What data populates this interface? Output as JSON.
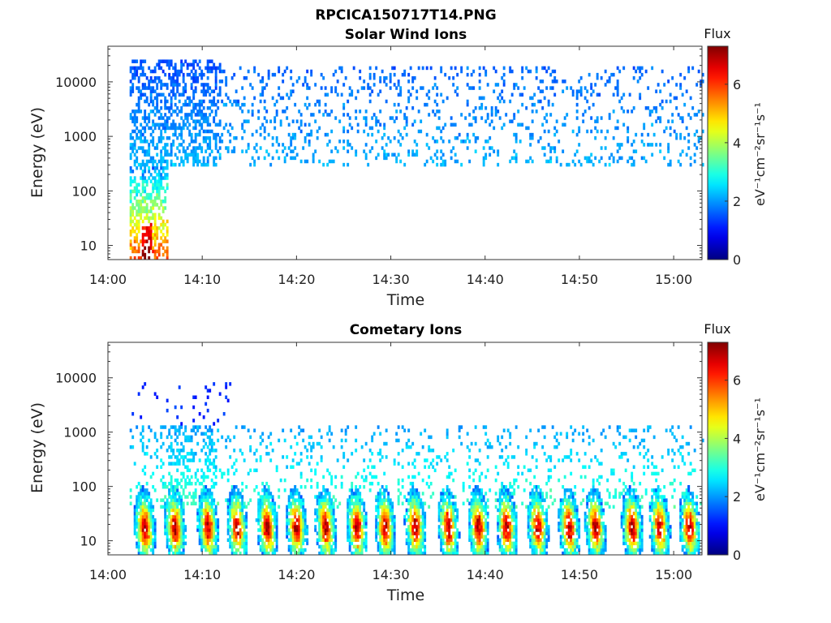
{
  "figure": {
    "title": "RPCICA150717T14.PNG"
  },
  "chart_data": [
    {
      "type": "heatmap",
      "title": "Solar Wind Ions",
      "xlabel": "Time",
      "ylabel": "Energy (eV)",
      "x_ticks": [
        "14:00",
        "14:10",
        "14:20",
        "14:30",
        "14:40",
        "14:50",
        "15:00"
      ],
      "x_tick_minutes": [
        0,
        10,
        20,
        30,
        40,
        50,
        60
      ],
      "xlim_minutes": [
        0,
        63
      ],
      "y_scale": "log",
      "y_ticks": [
        "10",
        "100",
        "1000",
        "10000"
      ],
      "y_tick_values": [
        10,
        100,
        1000,
        10000
      ],
      "ylim": [
        5.5,
        45000
      ],
      "colorbar": {
        "title": "Flux",
        "unit_label": "eV⁻¹cm⁻²sr⁻¹s⁻¹",
        "ticks": [
          "0",
          "2",
          "4",
          "6"
        ],
        "tick_values": [
          0,
          2,
          4,
          6
        ],
        "range": [
          0,
          7.3
        ],
        "colormap": "jet"
      },
      "data_summary": {
        "time_start_minutes": 2.3,
        "time_end_minutes": 63,
        "bursts": [
          {
            "label": "initial low-energy component",
            "time_minutes": [
              2.3,
              6.2
            ],
            "energy_eV": [
              5.5,
              300
            ],
            "flux_range": [
              2,
              6
            ]
          },
          {
            "label": "dense solar wind beam",
            "time_minutes": [
              2.3,
              11.8
            ],
            "energy_eV": [
              300,
              25000
            ],
            "flux_range": [
              0.8,
              2.2
            ]
          },
          {
            "label": "sparse solar wind beam",
            "time_minutes": [
              11.8,
              63
            ],
            "energy_eV": [
              300,
              20000
            ],
            "flux_range": [
              1.0,
              2.3
            ]
          }
        ]
      }
    },
    {
      "type": "heatmap",
      "title": "Cometary Ions",
      "xlabel": "Time",
      "ylabel": "Energy (eV)",
      "x_ticks": [
        "14:00",
        "14:10",
        "14:20",
        "14:30",
        "14:40",
        "14:50",
        "15:00"
      ],
      "x_tick_minutes": [
        0,
        10,
        20,
        30,
        40,
        50,
        60
      ],
      "xlim_minutes": [
        0,
        63
      ],
      "y_scale": "log",
      "y_ticks": [
        "10",
        "100",
        "1000",
        "10000"
      ],
      "y_tick_values": [
        10,
        100,
        1000,
        10000
      ],
      "ylim": [
        5.5,
        45000
      ],
      "colorbar": {
        "title": "Flux",
        "unit_label": "eV⁻¹cm⁻²sr⁻¹s⁻¹",
        "ticks": [
          "0",
          "2",
          "4",
          "6"
        ],
        "tick_values": [
          0,
          2,
          4,
          6
        ],
        "range": [
          0,
          7.3
        ],
        "colormap": "jet"
      },
      "data_summary": {
        "time_start_minutes": 2.3,
        "time_end_minutes": 63,
        "background": {
          "energy_eV": [
            40,
            1300
          ],
          "flux_range": [
            2.0,
            3.2
          ]
        },
        "bursts_time_minutes": [
          3.8,
          7.0,
          10.5,
          13.6,
          16.8,
          19.9,
          23.0,
          26.3,
          29.3,
          32.5,
          36.0,
          39.2,
          42.2,
          45.5,
          48.8,
          51.6,
          55.5,
          58.4,
          61.6
        ],
        "burst_peak_flux": 7.0,
        "burst_energy_eV": [
          5.5,
          60
        ]
      }
    }
  ]
}
